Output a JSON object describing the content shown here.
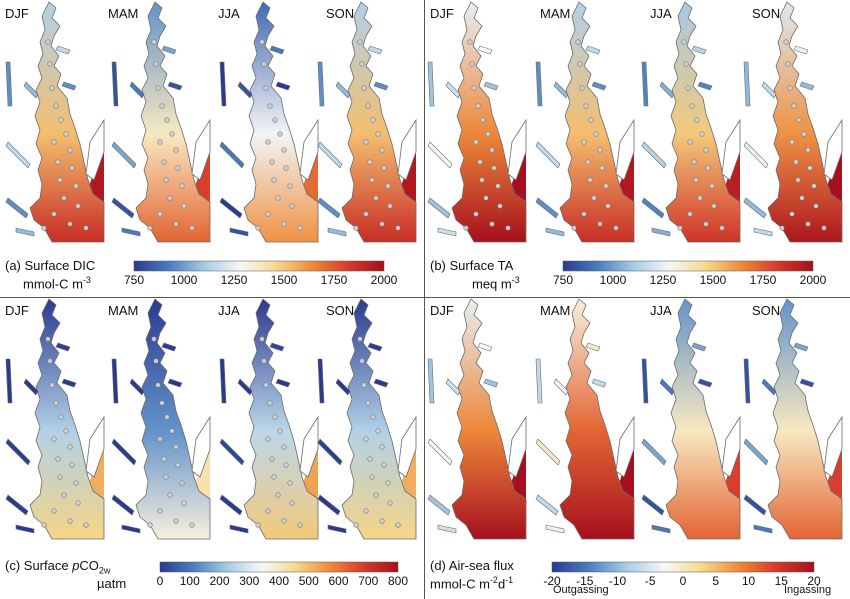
{
  "panels": [
    {
      "id": "a",
      "seasons": [
        "DJF",
        "MAM",
        "JJA",
        "SON"
      ],
      "title_line1": "(a) Surface DIC",
      "title_line2": "mmol-C m",
      "title_line2_sup": "-3",
      "colorbar": {
        "ticks": [
          "750",
          "1000",
          "1250",
          "1500",
          "1750",
          "2000"
        ],
        "range": [
          750,
          2000
        ],
        "palette": "blue-white-red"
      },
      "season_levels": [
        0.62,
        0.5,
        0.42,
        0.62
      ]
    },
    {
      "id": "b",
      "seasons": [
        "DJF",
        "MAM",
        "JJA",
        "SON"
      ],
      "title_line1": "(b) Surface TA",
      "title_line2": "meq m",
      "title_line2_sup": "-3",
      "colorbar": {
        "ticks": [
          "750",
          "1000",
          "1250",
          "1500",
          "1750",
          "2000"
        ],
        "range": [
          750,
          2000
        ],
        "palette": "blue-white-red"
      },
      "season_levels": [
        0.72,
        0.62,
        0.6,
        0.7
      ]
    },
    {
      "id": "c",
      "seasons": [
        "DJF",
        "MAM",
        "JJA",
        "SON"
      ],
      "title_line1_prefix": "(c) Surface ",
      "title_line1_italic": "p",
      "title_line1_main": "CO",
      "title_line1_sub": "2w",
      "title_line2": "µatm",
      "colorbar": {
        "ticks": [
          "0",
          "100",
          "200",
          "300",
          "400",
          "500",
          "600",
          "700",
          "800"
        ],
        "range": [
          0,
          800
        ],
        "palette": "blue-white-red"
      },
      "season_levels": [
        0.3,
        0.18,
        0.32,
        0.3
      ]
    },
    {
      "id": "d",
      "seasons": [
        "DJF",
        "MAM",
        "JJA",
        "SON"
      ],
      "title_line1": "(d) Air-sea flux",
      "title_line2": "mmol-C m",
      "title_line2_sup1": "-2",
      "title_line2_mid": "d",
      "title_line2_sup2": "-1",
      "colorbar": {
        "ticks": [
          "-20",
          "-15",
          "-10",
          "-5",
          "0",
          "5",
          "10",
          "15",
          "20"
        ],
        "range": [
          -20,
          20
        ],
        "palette": "blue-white-red",
        "left_note": "Outgassing",
        "right_note": "Ingassing"
      },
      "season_levels": [
        0.72,
        0.78,
        0.5,
        0.5
      ]
    }
  ],
  "colors": {
    "dark_blue": "#2a3a8f",
    "blue": "#4a7fc0",
    "light_blue": "#a9cde6",
    "white": "#f7f7f7",
    "yellow": "#f6d98a",
    "orange": "#ee8a3a",
    "red": "#d63a2a",
    "dark_red": "#a6101e",
    "outline": "#6b6b6b",
    "station": "#cfcfcf"
  }
}
